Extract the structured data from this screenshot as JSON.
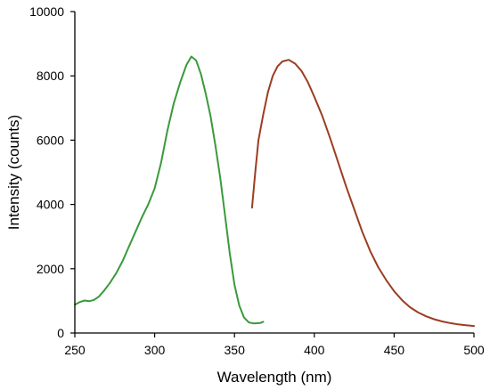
{
  "chart_data": {
    "type": "line",
    "xlabel": "Wavelength (nm)",
    "ylabel": "Intensity (counts)",
    "xlim": [
      250,
      500
    ],
    "ylim": [
      0,
      10000
    ],
    "x_ticks": [
      250,
      300,
      350,
      400,
      450,
      500
    ],
    "y_ticks": [
      0,
      2000,
      4000,
      6000,
      8000,
      10000
    ],
    "grid": false,
    "legend": "none",
    "series": [
      {
        "color": "#3a9a3a",
        "points": [
          [
            250,
            880
          ],
          [
            253,
            960
          ],
          [
            256,
            1010
          ],
          [
            259,
            990
          ],
          [
            262,
            1030
          ],
          [
            265,
            1130
          ],
          [
            268,
            1300
          ],
          [
            272,
            1560
          ],
          [
            276,
            1870
          ],
          [
            280,
            2250
          ],
          [
            284,
            2700
          ],
          [
            288,
            3150
          ],
          [
            292,
            3600
          ],
          [
            296,
            4000
          ],
          [
            300,
            4500
          ],
          [
            304,
            5300
          ],
          [
            308,
            6300
          ],
          [
            312,
            7150
          ],
          [
            316,
            7800
          ],
          [
            320,
            8350
          ],
          [
            323,
            8600
          ],
          [
            326,
            8480
          ],
          [
            329,
            8050
          ],
          [
            332,
            7450
          ],
          [
            335,
            6750
          ],
          [
            338,
            5850
          ],
          [
            341,
            4850
          ],
          [
            344,
            3700
          ],
          [
            347,
            2500
          ],
          [
            350,
            1500
          ],
          [
            353,
            850
          ],
          [
            356,
            480
          ],
          [
            359,
            330
          ],
          [
            362,
            300
          ],
          [
            366,
            310
          ],
          [
            368,
            350
          ]
        ]
      },
      {
        "color": "#9b3d22",
        "points": [
          [
            361,
            3900
          ],
          [
            363,
            5000
          ],
          [
            365,
            6000
          ],
          [
            368,
            6800
          ],
          [
            371,
            7500
          ],
          [
            374,
            8000
          ],
          [
            377,
            8300
          ],
          [
            380,
            8450
          ],
          [
            384,
            8500
          ],
          [
            388,
            8380
          ],
          [
            392,
            8150
          ],
          [
            396,
            7800
          ],
          [
            400,
            7350
          ],
          [
            405,
            6750
          ],
          [
            410,
            6050
          ],
          [
            415,
            5300
          ],
          [
            420,
            4550
          ],
          [
            425,
            3850
          ],
          [
            430,
            3150
          ],
          [
            435,
            2550
          ],
          [
            440,
            2050
          ],
          [
            445,
            1650
          ],
          [
            450,
            1300
          ],
          [
            455,
            1020
          ],
          [
            460,
            800
          ],
          [
            465,
            640
          ],
          [
            470,
            520
          ],
          [
            475,
            430
          ],
          [
            480,
            360
          ],
          [
            485,
            310
          ],
          [
            490,
            270
          ],
          [
            495,
            240
          ],
          [
            500,
            220
          ]
        ]
      }
    ]
  }
}
